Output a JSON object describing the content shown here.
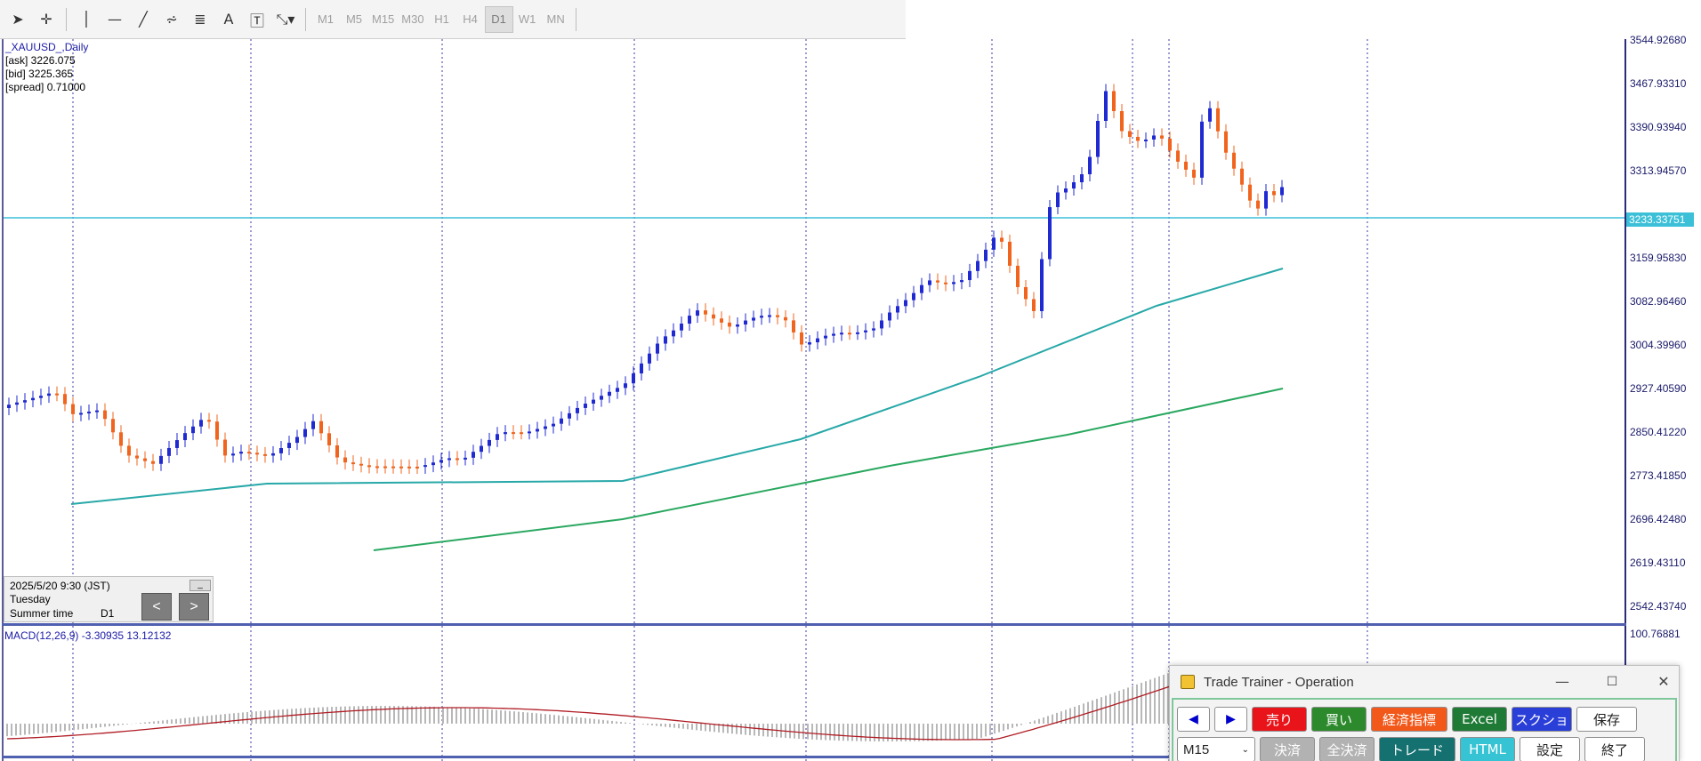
{
  "toolbar": {
    "tools": [
      {
        "name": "cursor-icon",
        "glyph": "➤"
      },
      {
        "name": "crosshair-icon",
        "glyph": "✛"
      },
      {
        "name": "vertical-line-icon",
        "glyph": "│"
      },
      {
        "name": "horizontal-line-icon",
        "glyph": "—"
      },
      {
        "name": "trendline-icon",
        "glyph": "╱"
      },
      {
        "name": "fibonacci-fan-icon",
        "glyph": "⩫"
      },
      {
        "name": "fibonacci-retracement-icon",
        "glyph": "≣"
      },
      {
        "name": "text-icon",
        "glyph": "A"
      },
      {
        "name": "text-label-icon",
        "glyph": "🅃"
      },
      {
        "name": "shapes-dropdown-icon",
        "glyph": "⤡▾"
      }
    ],
    "timeframes": [
      "M1",
      "M5",
      "M15",
      "M30",
      "H1",
      "H4",
      "D1",
      "W1",
      "MN"
    ],
    "active_timeframe": "D1"
  },
  "chart": {
    "symbol": "_XAUUSD_,Daily",
    "ask": "[ask] 3226.075",
    "bid": "[bid] 3225.365",
    "spread": "[spread] 0.71000",
    "current_price": "3233.33751",
    "price_axis": [
      "3544.92680",
      "3467.93310",
      "3390.93940",
      "3313.94570",
      "3159.95830",
      "3082.96460",
      "3004.39960",
      "2927.40590",
      "2850.41220",
      "2773.41850",
      "2696.42480",
      "2619.43110",
      "2542.43740"
    ],
    "macd_label": "MACD(12,26,9) -3.30935 13.12132",
    "macd_axis_top": "100.76881",
    "colors": {
      "bull": "#1f2ad0",
      "bear": "#f0641e",
      "price_line": "#3cc0d8",
      "ma_red": "#b01c24",
      "ma_teal": "#28a8a8",
      "ma_green": "#2aa860"
    }
  },
  "date_panel": {
    "datetime": "2025/5/20 9:30 (JST)",
    "weekday": "Tuesday",
    "dst": "Summer time",
    "timeframe": "D1",
    "minimize": "_",
    "prev": "<",
    "next": ">"
  },
  "trade_trainer": {
    "title": "Trade Trainer - Operation",
    "minimize": "—",
    "maximize": "☐",
    "close": "✕",
    "back": "◀",
    "forward": "▶",
    "timeframe_select": "M15",
    "row1": [
      {
        "label": "売り",
        "bg": "#e8141a",
        "fg": "#ffffff"
      },
      {
        "label": "買い",
        "bg": "#2c8a2c",
        "fg": "#ffffff"
      },
      {
        "label": "経済指標",
        "bg": "#f2581a",
        "fg": "#ffffff"
      },
      {
        "label": "Excel",
        "bg": "#1f7a36",
        "fg": "#ffffff"
      },
      {
        "label": "スクショ",
        "bg": "#2a3ed8",
        "fg": "#ffffff"
      },
      {
        "label": "保存",
        "bg": "#ffffff",
        "fg": "#222222"
      }
    ],
    "row2": [
      {
        "label": "決済",
        "bg": "#b2b2b2",
        "fg": "#ffffff"
      },
      {
        "label": "全決済",
        "bg": "#b2b2b2",
        "fg": "#ffffff"
      },
      {
        "label": "トレード",
        "bg": "#157070",
        "fg": "#ffffff"
      },
      {
        "label": "HTML",
        "bg": "#36c3d3",
        "fg": "#ffffff"
      },
      {
        "label": "設定",
        "bg": "#ffffff",
        "fg": "#222222"
      },
      {
        "label": "終了",
        "bg": "#ffffff",
        "fg": "#222222"
      }
    ]
  }
}
